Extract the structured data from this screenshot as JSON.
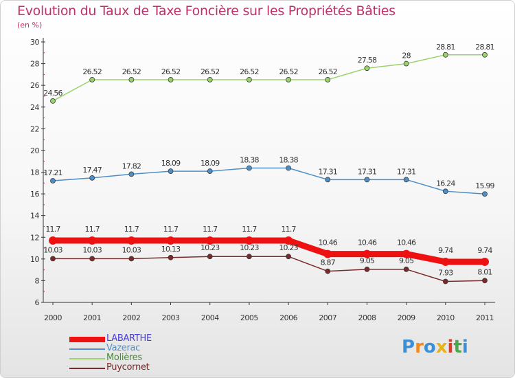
{
  "header": {
    "title": "Evolution du Taux de Taxe Foncière sur les Propriétés Bâties",
    "unit": "(en %)"
  },
  "logo": {
    "text": "Proxiti",
    "colors": [
      "#3a8fd6",
      "#f08a1c",
      "#3a8fd6",
      "#e8b21a",
      "#d93c2a",
      "#4aa84a",
      "#3a8fd6"
    ]
  },
  "chart_data": {
    "type": "line",
    "title": "Evolution du Taux de Taxe Foncière sur les Propriétés Bâties",
    "ylabel": "(en %)",
    "xlabel": "",
    "x": [
      "2000",
      "2001",
      "2002",
      "2003",
      "2004",
      "2005",
      "2006",
      "2007",
      "2008",
      "2009",
      "2010",
      "2011"
    ],
    "ylim": [
      6,
      30
    ],
    "yticks": [
      6,
      8,
      10,
      12,
      14,
      16,
      18,
      20,
      22,
      24,
      26,
      28,
      30
    ],
    "grid": false,
    "legend_position": "bottom-left",
    "series": [
      {
        "name": "LABARTHE",
        "color": "#ee1111",
        "values": [
          11.7,
          11.7,
          11.7,
          11.7,
          11.7,
          11.7,
          11.7,
          10.46,
          10.46,
          10.46,
          9.74,
          9.74
        ],
        "labels": [
          "11.7",
          "11.7",
          "11.7",
          "11.7",
          "11.7",
          "11.7",
          "11.7",
          "10.46",
          "10.46",
          "10.46",
          "9.74",
          "9.74"
        ]
      },
      {
        "name": "Vazerac",
        "color": "#4f8fc6",
        "values": [
          17.21,
          17.47,
          17.82,
          18.09,
          18.09,
          18.38,
          18.38,
          17.31,
          17.31,
          17.31,
          16.24,
          15.99
        ],
        "labels": [
          "17.21",
          "17.47",
          "17.82",
          "18.09",
          "18.09",
          "18.38",
          "18.38",
          "17.31",
          "17.31",
          "17.31",
          "16.24",
          "15.99"
        ]
      },
      {
        "name": "Molières",
        "color": "#9ad26e",
        "values": [
          24.56,
          26.52,
          26.52,
          26.52,
          26.52,
          26.52,
          26.52,
          26.52,
          27.58,
          28,
          28.81,
          28.81
        ],
        "labels": [
          "24.56",
          "26.52",
          "26.52",
          "26.52",
          "26.52",
          "26.52",
          "26.52",
          "26.52",
          "27.58",
          "28",
          "28.81",
          "28.81"
        ]
      },
      {
        "name": "Puycornet",
        "color": "#7a2a2a",
        "values": [
          10.03,
          10.03,
          10.03,
          10.13,
          10.23,
          10.23,
          10.23,
          8.87,
          9.05,
          9.05,
          7.93,
          8.01
        ],
        "labels": [
          "10.03",
          "10.03",
          "10.03",
          "10.13",
          "10.23",
          "10.23",
          "10.23",
          "8.87",
          "9.05",
          "9.05",
          "7.93",
          "8.01"
        ]
      }
    ],
    "legend_text_colors": [
      "#4a3dd8",
      "#4f8fc6",
      "#4a8a3a",
      "#7a2a2a"
    ]
  }
}
